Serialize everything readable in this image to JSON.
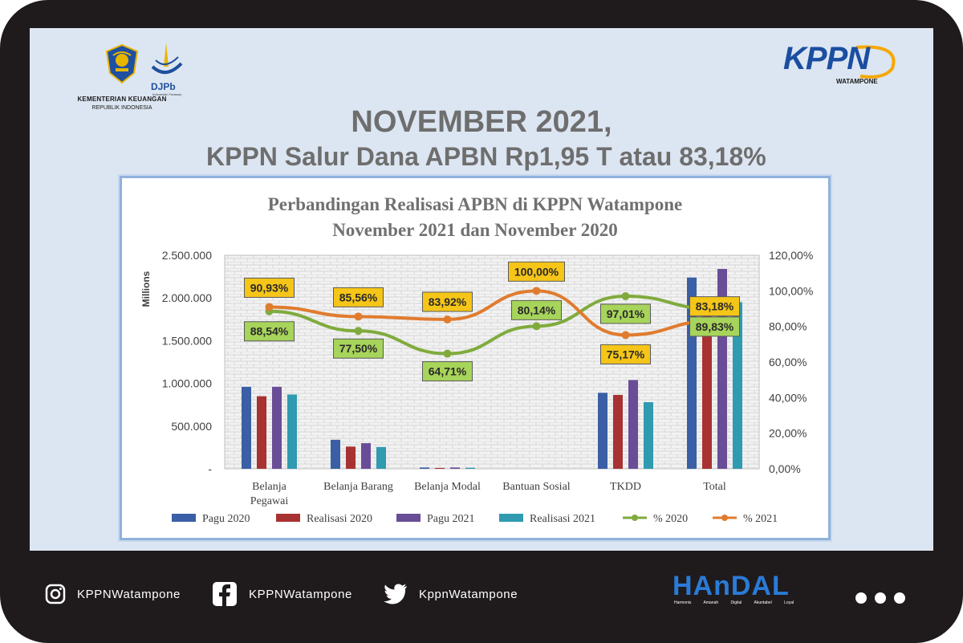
{
  "header": {
    "kemenkeu_line1": "KEMENTERIAN KEUANGAN",
    "kemenkeu_line2": "REPUBLIK INDONESIA",
    "djpb_label": "DJPb",
    "djpb_sub": "Indonesian Treasury",
    "kppn_label": "KPPN",
    "kppn_sub": "WATAMPONE",
    "headline_line1": "NOVEMBER 2021,",
    "headline_line2": "KPPN Salur Dana APBN Rp1,95 T atau 83,18%"
  },
  "colors": {
    "pagu2020": "#3b5fa6",
    "realisasi2020": "#a83232",
    "pagu2021": "#6a4d97",
    "realisasi2021": "#2f9ab0",
    "pct2020": "#7fab3d",
    "pct2021": "#e07c2f",
    "label_2021_bg": "#f5c518",
    "label_2020_bg": "#a7d45a"
  },
  "chart_data": {
    "type": "bar",
    "title_line1": "Perbandingan Realisasi APBN di KPPN Watampone",
    "title_line2": "November 2021 dan November 2020",
    "ylabel": "Millions",
    "ylim": [
      0,
      2500000
    ],
    "y2lim": [
      0,
      120
    ],
    "y_ticks": [
      "2.500.000",
      "2.000.000",
      "1.500.000",
      "1.000.000",
      "500.000",
      "-"
    ],
    "y2_ticks": [
      "120,00%",
      "100,00%",
      "80,00%",
      "60,00%",
      "40,00%",
      "20,00%",
      "0,00%"
    ],
    "categories": [
      "Belanja Pegawai",
      "Belanja Barang",
      "Belanja Modal",
      "Bantuan Sosial",
      "TKDD",
      "Total"
    ],
    "category_lines": [
      [
        "Belanja",
        "Pegawai"
      ],
      [
        "Belanja Barang"
      ],
      [
        "Belanja Modal"
      ],
      [
        "Bantuan Sosial"
      ],
      [
        "TKDD"
      ],
      [
        "Total"
      ]
    ],
    "series": [
      {
        "name": "Pagu 2020",
        "values": [
          960000,
          340000,
          15000,
          0,
          890000,
          2240000
        ]
      },
      {
        "name": "Realisasi 2020",
        "values": [
          850000,
          260000,
          10000,
          0,
          865000,
          2010000
        ]
      },
      {
        "name": "Pagu 2021",
        "values": [
          960000,
          300000,
          15000,
          0,
          1040000,
          2340000
        ]
      },
      {
        "name": "Realisasi 2021",
        "values": [
          870000,
          255000,
          12000,
          0,
          780000,
          1950000
        ]
      }
    ],
    "lines": [
      {
        "name": "% 2020",
        "values": [
          88.54,
          77.5,
          64.71,
          80.14,
          97.01,
          89.83
        ],
        "labels": [
          "88,54%",
          "77,50%",
          "64,71%",
          "80,14%",
          "97,01%",
          "89,83%"
        ]
      },
      {
        "name": "% 2021",
        "values": [
          90.93,
          85.56,
          83.92,
          100.0,
          75.17,
          83.18
        ],
        "labels": [
          "90,93%",
          "85,56%",
          "83,92%",
          "100,00%",
          "75,17%",
          "83,18%"
        ]
      }
    ],
    "legend": [
      "Pagu 2020",
      "Realisasi 2020",
      "Pagu 2021",
      "Realisasi 2021",
      "% 2020",
      "% 2021"
    ],
    "legend_position": "bottom",
    "grid": true
  },
  "footer": {
    "instagram": "KPPNWatampone",
    "facebook": "KPPNWatampone",
    "twitter": "KppnWatampone",
    "handal_label": "HAnDAL",
    "handal_words": "Harmonis Amanah Digital Akuntabel Loyal"
  }
}
